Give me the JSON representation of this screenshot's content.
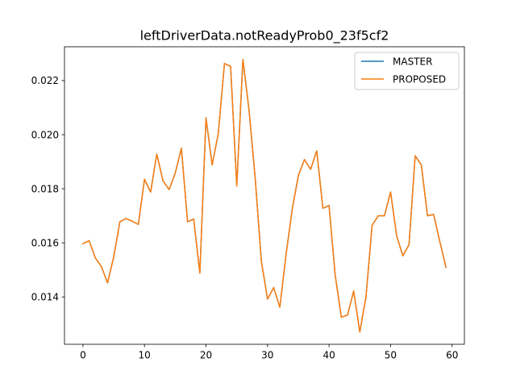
{
  "chart_data": {
    "type": "line",
    "title": "leftDriverData.notReadyProb0_23f5cf2",
    "xlabel": "",
    "ylabel": "",
    "xlim": [
      -3,
      62
    ],
    "ylim": [
      0.01225,
      0.02325
    ],
    "x_ticks": [
      0,
      10,
      20,
      30,
      40,
      50,
      60
    ],
    "y_ticks": [
      0.014,
      0.016,
      0.018,
      0.02,
      0.022
    ],
    "x_tick_labels": [
      "0",
      "10",
      "20",
      "30",
      "40",
      "50",
      "60"
    ],
    "y_tick_labels": [
      "0.014",
      "0.016",
      "0.018",
      "0.020",
      "0.022"
    ],
    "grid": false,
    "legend_position": "top-right",
    "x": [
      0,
      1,
      2,
      3,
      4,
      5,
      6,
      7,
      8,
      9,
      10,
      11,
      12,
      13,
      14,
      15,
      16,
      17,
      18,
      19,
      20,
      21,
      22,
      23,
      24,
      25,
      26,
      27,
      28,
      29,
      30,
      31,
      32,
      33,
      34,
      35,
      36,
      37,
      38,
      39,
      40,
      41,
      42,
      43,
      44,
      45,
      46,
      47,
      48,
      49,
      50,
      51,
      52,
      53,
      54,
      55,
      56,
      57,
      58,
      59
    ],
    "series": [
      {
        "name": "MASTER",
        "color": "#1f77b4",
        "values": [
          0.01597,
          0.01608,
          0.01545,
          0.01512,
          0.01452,
          0.01548,
          0.01678,
          0.0169,
          0.0168,
          0.01668,
          0.01835,
          0.01788,
          0.01928,
          0.0183,
          0.01797,
          0.01858,
          0.0195,
          0.01678,
          0.01688,
          0.01488,
          0.02062,
          0.01888,
          0.02005,
          0.02263,
          0.02253,
          0.0181,
          0.02278,
          0.0209,
          0.01838,
          0.01532,
          0.01392,
          0.01435,
          0.01362,
          0.01555,
          0.01722,
          0.01848,
          0.01908,
          0.01872,
          0.0194,
          0.01728,
          0.01738,
          0.0148,
          0.01325,
          0.01333,
          0.01422,
          0.0127,
          0.014,
          0.01665,
          0.017,
          0.017,
          0.01788,
          0.01625,
          0.01552,
          0.01593,
          0.01922,
          0.01888,
          0.017,
          0.01705,
          0.01605,
          0.0151
        ]
      },
      {
        "name": "PROPOSED",
        "color": "#ff7f0e",
        "values": [
          0.01597,
          0.01608,
          0.01545,
          0.01512,
          0.01452,
          0.01548,
          0.01678,
          0.0169,
          0.0168,
          0.01668,
          0.01835,
          0.01788,
          0.01928,
          0.0183,
          0.01797,
          0.01858,
          0.0195,
          0.01678,
          0.01688,
          0.01488,
          0.02062,
          0.01888,
          0.02005,
          0.02263,
          0.02253,
          0.0181,
          0.02278,
          0.0209,
          0.01838,
          0.01532,
          0.01392,
          0.01435,
          0.01362,
          0.01555,
          0.01722,
          0.01848,
          0.01908,
          0.01872,
          0.0194,
          0.01728,
          0.01738,
          0.0148,
          0.01325,
          0.01333,
          0.01422,
          0.0127,
          0.014,
          0.01665,
          0.017,
          0.017,
          0.01788,
          0.01625,
          0.01552,
          0.01593,
          0.01922,
          0.01888,
          0.017,
          0.01705,
          0.01605,
          0.0151
        ]
      }
    ]
  }
}
